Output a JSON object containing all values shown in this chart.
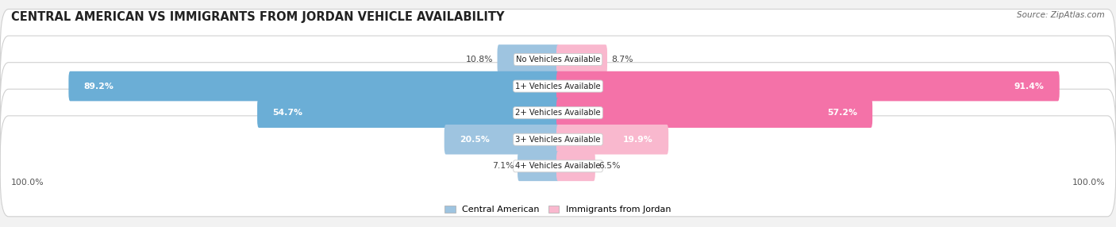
{
  "title": "CENTRAL AMERICAN VS IMMIGRANTS FROM JORDAN VEHICLE AVAILABILITY",
  "source": "Source: ZipAtlas.com",
  "categories": [
    "No Vehicles Available",
    "1+ Vehicles Available",
    "2+ Vehicles Available",
    "3+ Vehicles Available",
    "4+ Vehicles Available"
  ],
  "central_american": [
    10.8,
    89.2,
    54.7,
    20.5,
    7.1
  ],
  "jordan": [
    8.7,
    91.4,
    57.2,
    19.9,
    6.5
  ],
  "max_val": 100.0,
  "blue_light": "#9EC4E0",
  "blue_dark": "#6BAED6",
  "pink_light": "#F9B8CE",
  "pink_dark": "#F472A8",
  "bg_color": "#f2f2f2",
  "title_fontsize": 10.5,
  "bar_height": 0.52,
  "small_threshold": 15
}
